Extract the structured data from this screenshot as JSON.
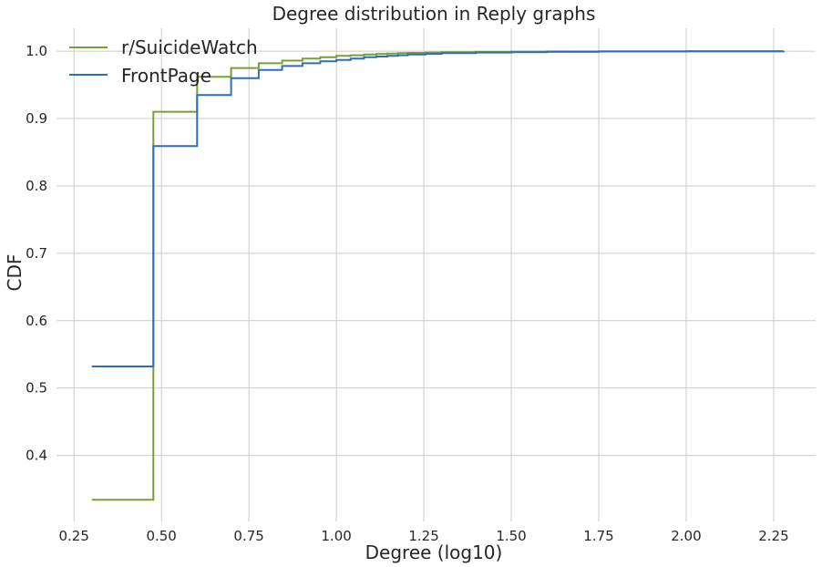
{
  "chart_data": {
    "type": "line",
    "step": true,
    "title": "Degree distribution in Reply graphs",
    "xlabel": "Degree (log10)",
    "ylabel": "CDF",
    "xlim": [
      0.2,
      2.37
    ],
    "ylim": [
      0.302,
      1.034
    ],
    "xticks": [
      "0.25",
      "0.50",
      "0.75",
      "1.00",
      "1.25",
      "1.50",
      "1.75",
      "2.00",
      "2.25"
    ],
    "yticks": [
      "0.4",
      "0.5",
      "0.6",
      "0.7",
      "0.8",
      "0.9",
      "1.0"
    ],
    "grid": true,
    "legend_position": "top-left",
    "series": [
      {
        "name": "r/SuicideWatch",
        "color": "#76a034",
        "x": [
          0.301,
          0.477,
          0.602,
          0.699,
          0.778,
          0.845,
          0.903,
          0.954,
          1.0,
          1.041,
          1.079,
          1.114,
          1.146,
          1.176,
          1.204,
          1.255,
          1.301,
          1.398,
          1.5,
          1.602,
          1.75,
          2.0,
          2.279
        ],
        "y": [
          0.334,
          0.91,
          0.962,
          0.975,
          0.982,
          0.986,
          0.989,
          0.991,
          0.993,
          0.994,
          0.995,
          0.996,
          0.9965,
          0.997,
          0.9975,
          0.998,
          0.9985,
          0.999,
          0.9993,
          0.9996,
          0.9998,
          0.9999,
          1.0
        ]
      },
      {
        "name": "FrontPage",
        "color": "#2e6eb8",
        "x": [
          0.301,
          0.477,
          0.602,
          0.699,
          0.778,
          0.845,
          0.903,
          0.954,
          1.0,
          1.041,
          1.079,
          1.114,
          1.146,
          1.176,
          1.204,
          1.255,
          1.301,
          1.398,
          1.5,
          1.602,
          1.75,
          2.0,
          2.279
        ],
        "y": [
          0.532,
          0.859,
          0.935,
          0.96,
          0.972,
          0.978,
          0.982,
          0.985,
          0.987,
          0.989,
          0.991,
          0.992,
          0.993,
          0.994,
          0.995,
          0.996,
          0.997,
          0.998,
          0.9985,
          0.999,
          0.9995,
          0.9998,
          1.0
        ]
      }
    ]
  }
}
